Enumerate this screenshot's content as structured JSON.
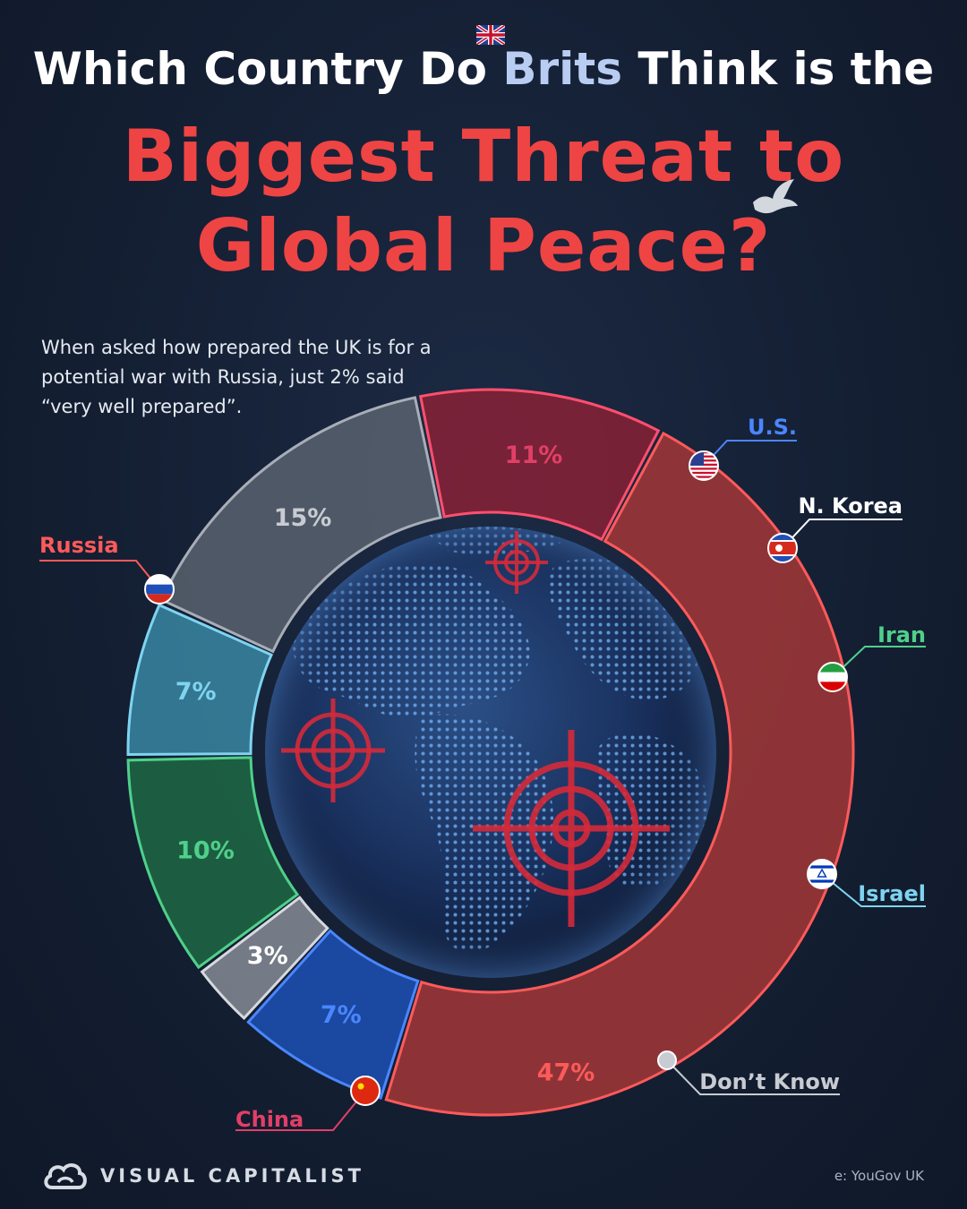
{
  "title": {
    "line1_pre": "Which Country Do ",
    "line1_highlight": "Brits",
    "line1_post": " Think is the",
    "line2": "Biggest Threat to",
    "line3": "Global Peace?"
  },
  "subtitle": "When asked how prepared the UK is for a potential war with Russia, just 2% said “very well prepared”.",
  "footer": {
    "brand": "VISUAL CAPITALIST",
    "source": "e: YouGov UK"
  },
  "colors": {
    "background": "#16233a",
    "title_red": "#ef4444",
    "brits_blue": "#b9cdf2"
  },
  "chart_data": {
    "type": "pie",
    "variant": "donut",
    "categories": [
      "Russia",
      "U.S.",
      "N. Korea",
      "Iran",
      "Israel",
      "Don't Know",
      "China"
    ],
    "values": [
      47,
      7,
      3,
      10,
      7,
      15,
      11
    ],
    "labels": [
      "47%",
      "7%",
      "3%",
      "10%",
      "7%",
      "15%",
      "11%"
    ],
    "name_labels": [
      "Russia",
      "U.S.",
      "N. Korea",
      "Iran",
      "Israel",
      "Don’t Know",
      "China"
    ],
    "colors": [
      "#a83838",
      "#1d52b8",
      "#8a8f99",
      "#1f6b45",
      "#3a8aa6",
      "#5c6470",
      "#8c2136"
    ],
    "edge_colors": [
      "#ff5a5a",
      "#4a86ff",
      "#d6d9de",
      "#4fd08a",
      "#7fd4f0",
      "#a8aeb8",
      "#ff4f6e"
    ],
    "label_colors": [
      "#ff5a5a",
      "#4a86ff",
      "#ffffff",
      "#4fd08a",
      "#7fd4f0",
      "#c8ccd2",
      "#e23f66"
    ],
    "pct_colors": [
      "#ff5a5a",
      "#4a86ff",
      "#ffffff",
      "#4fd08a",
      "#7fd4f0",
      "#c8ccd2",
      "#e23f66"
    ],
    "icons": [
      "russia-flag-icon",
      "us-flag-icon",
      "north-korea-flag-icon",
      "iran-flag-icon",
      "israel-flag-icon",
      "dot-marker-icon",
      "china-flag-icon"
    ]
  }
}
